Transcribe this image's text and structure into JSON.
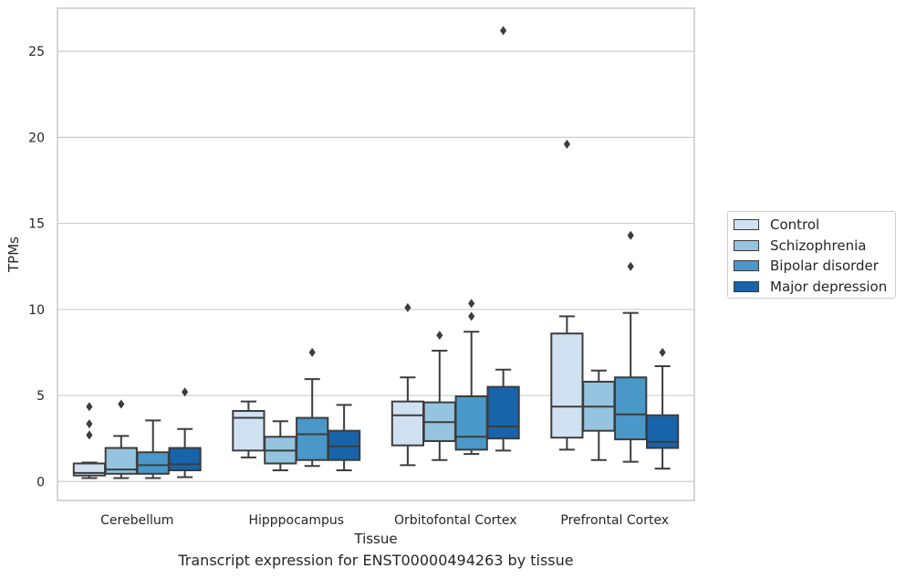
{
  "chart_data": {
    "type": "box",
    "xlabel": "Tissue",
    "ylabel": "TPMs",
    "caption": "Transcript expression for ENST00000494263 by tissue",
    "ylim": [
      -1.1,
      27.5
    ],
    "yticks": [
      0,
      5,
      10,
      15,
      20,
      25
    ],
    "grid": "horizontal",
    "legend_position": "right",
    "categories": [
      "Cerebellum",
      "Hipppocampus",
      "Orbitofontal Cortex",
      "Prefrontal Cortex"
    ],
    "series": [
      {
        "name": "Control",
        "color": "#d0e1f2",
        "boxes": [
          {
            "whisker_low": 0.2,
            "q1": 0.35,
            "median": 0.5,
            "q3": 1.05,
            "whisker_high": 1.1,
            "outliers": [
              2.7,
              3.35,
              4.35
            ]
          },
          {
            "whisker_low": 1.4,
            "q1": 1.8,
            "median": 3.7,
            "q3": 4.1,
            "whisker_high": 4.65,
            "outliers": []
          },
          {
            "whisker_low": 0.95,
            "q1": 2.1,
            "median": 3.85,
            "q3": 4.65,
            "whisker_high": 6.05,
            "outliers": [
              10.1
            ]
          },
          {
            "whisker_low": 1.85,
            "q1": 2.55,
            "median": 4.35,
            "q3": 8.6,
            "whisker_high": 9.6,
            "outliers": [
              19.6
            ]
          }
        ]
      },
      {
        "name": "Schizophrenia",
        "color": "#94c4df",
        "boxes": [
          {
            "whisker_low": 0.2,
            "q1": 0.45,
            "median": 0.7,
            "q3": 1.95,
            "whisker_high": 2.65,
            "outliers": [
              4.5
            ]
          },
          {
            "whisker_low": 0.65,
            "q1": 1.05,
            "median": 1.8,
            "q3": 2.6,
            "whisker_high": 3.5,
            "outliers": []
          },
          {
            "whisker_low": 1.25,
            "q1": 2.35,
            "median": 3.45,
            "q3": 4.6,
            "whisker_high": 7.6,
            "outliers": [
              8.5
            ]
          },
          {
            "whisker_low": 1.25,
            "q1": 2.95,
            "median": 4.35,
            "q3": 5.8,
            "whisker_high": 6.45,
            "outliers": []
          }
        ]
      },
      {
        "name": "Bipolar disorder",
        "color": "#4a98c9",
        "boxes": [
          {
            "whisker_low": 0.2,
            "q1": 0.45,
            "median": 0.95,
            "q3": 1.7,
            "whisker_high": 3.55,
            "outliers": []
          },
          {
            "whisker_low": 0.9,
            "q1": 1.25,
            "median": 2.75,
            "q3": 3.7,
            "whisker_high": 5.95,
            "outliers": [
              7.5
            ]
          },
          {
            "whisker_low": 1.6,
            "q1": 1.85,
            "median": 2.6,
            "q3": 4.95,
            "whisker_high": 8.7,
            "outliers": [
              9.6,
              10.35
            ]
          },
          {
            "whisker_low": 1.15,
            "q1": 2.45,
            "median": 3.9,
            "q3": 6.05,
            "whisker_high": 9.8,
            "outliers": [
              12.5,
              14.3
            ]
          }
        ]
      },
      {
        "name": "Major depression",
        "color": "#1764ab",
        "boxes": [
          {
            "whisker_low": 0.25,
            "q1": 0.65,
            "median": 1.0,
            "q3": 1.95,
            "whisker_high": 3.05,
            "outliers": [
              5.2
            ]
          },
          {
            "whisker_low": 0.65,
            "q1": 1.25,
            "median": 2.05,
            "q3": 2.95,
            "whisker_high": 4.45,
            "outliers": []
          },
          {
            "whisker_low": 1.8,
            "q1": 2.5,
            "median": 3.2,
            "q3": 5.5,
            "whisker_high": 6.5,
            "outliers": [
              26.2
            ]
          },
          {
            "whisker_low": 0.75,
            "q1": 1.95,
            "median": 2.3,
            "q3": 3.85,
            "whisker_high": 6.7,
            "outliers": [
              7.5
            ]
          }
        ]
      }
    ]
  }
}
